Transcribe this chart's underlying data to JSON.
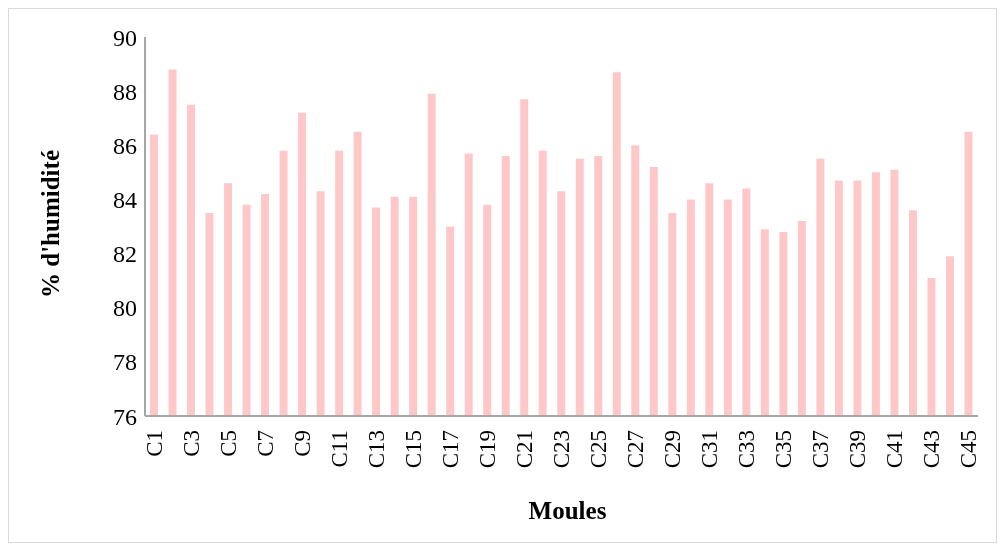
{
  "chart_data": {
    "type": "bar",
    "xlabel": "Moules",
    "ylabel": "% d'humidité",
    "categories": [
      "C1",
      null,
      "C3",
      null,
      "C5",
      null,
      "C7",
      null,
      "C9",
      null,
      "C11",
      null,
      "C13",
      null,
      "C15",
      null,
      "C17",
      null,
      "C19",
      null,
      "C21",
      null,
      "C23",
      null,
      "C25",
      null,
      "C27",
      null,
      "C29",
      null,
      "C31",
      null,
      "C33",
      null,
      "C35",
      null,
      "C37",
      null,
      "C39",
      null,
      "C41",
      null,
      "C43",
      null,
      "C45"
    ],
    "values": [
      86.4,
      88.8,
      87.5,
      83.5,
      84.6,
      83.8,
      84.2,
      85.8,
      87.2,
      84.3,
      85.8,
      86.5,
      83.7,
      84.1,
      84.1,
      87.9,
      83.0,
      85.7,
      83.8,
      85.6,
      87.7,
      85.8,
      84.3,
      85.5,
      85.6,
      88.7,
      86.0,
      85.2,
      83.5,
      84.0,
      84.6,
      84.0,
      84.4,
      82.9,
      82.8,
      83.2,
      85.5,
      84.7,
      84.7,
      85.0,
      85.1,
      83.6,
      81.1,
      81.9,
      86.5
    ],
    "color": "#ffc8c8",
    "ylim": [
      76,
      90
    ],
    "yticks": [
      76,
      78,
      80,
      82,
      84,
      86,
      88,
      90
    ],
    "grid": false,
    "legend": false
  }
}
